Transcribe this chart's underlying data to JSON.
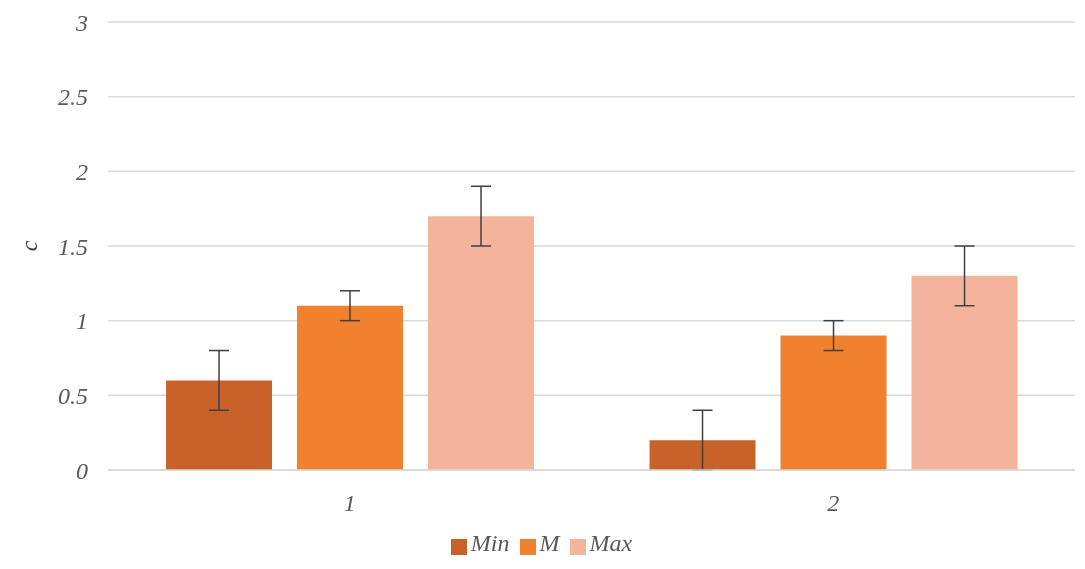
{
  "chart_data": {
    "type": "bar",
    "ylabel": "c",
    "categories": [
      "1",
      "2"
    ],
    "series": [
      {
        "name": "Min",
        "color": "#c8622a",
        "values": [
          0.6,
          0.2
        ],
        "errors": [
          0.2,
          0.2
        ]
      },
      {
        "name": "M",
        "color": "#f0812f",
        "values": [
          1.1,
          0.9
        ],
        "errors": [
          0.1,
          0.1
        ]
      },
      {
        "name": "Max",
        "color": "#f4b49c",
        "values": [
          1.7,
          1.3
        ],
        "errors": [
          0.2,
          0.2
        ]
      }
    ],
    "ylim": [
      0,
      3
    ],
    "yticks": [
      0,
      0.5,
      1,
      1.5,
      2,
      2.5,
      3
    ],
    "grid": "y",
    "legend": "bottom"
  }
}
